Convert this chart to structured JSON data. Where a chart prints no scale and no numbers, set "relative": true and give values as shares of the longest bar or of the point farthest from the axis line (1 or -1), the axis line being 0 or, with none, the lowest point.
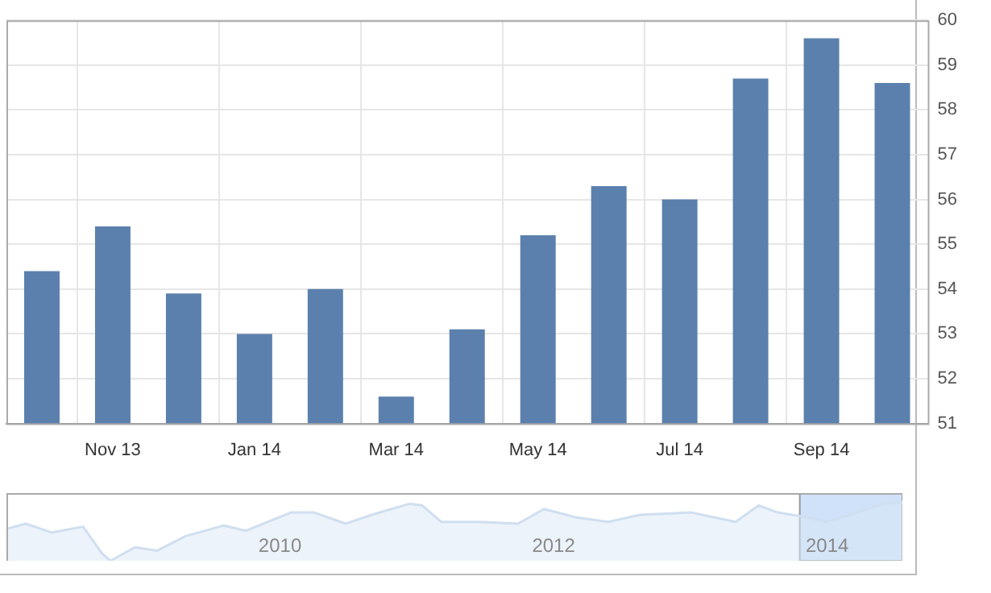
{
  "chart_data": [
    {
      "type": "bar",
      "categories": [
        null,
        "Nov 13",
        null,
        "Jan 14",
        null,
        "Mar 14",
        null,
        "May 14",
        null,
        "Jul 14",
        null,
        "Sep 14",
        null
      ],
      "values": [
        54.4,
        55.4,
        53.9,
        53.0,
        54.0,
        51.6,
        53.1,
        55.2,
        56.3,
        56.0,
        58.7,
        59.6,
        58.6
      ],
      "color": "#5b80ad",
      "ylim": [
        51,
        60
      ],
      "yticks": [
        51,
        52,
        53,
        54,
        55,
        56,
        57,
        58,
        59,
        60
      ],
      "grid": true
    },
    {
      "type": "area",
      "relative": true,
      "color": "#cfdff0",
      "x": [
        2008.0,
        2008.14,
        2008.33,
        2008.56,
        2008.7,
        2008.76,
        2008.94,
        2009.1,
        2009.31,
        2009.59,
        2009.75,
        2010.08,
        2010.25,
        2010.48,
        2010.67,
        2010.95,
        2011.04,
        2011.18,
        2011.46,
        2011.74,
        2011.93,
        2012.16,
        2012.4,
        2012.63,
        2013.01,
        2013.33,
        2013.5,
        2013.64,
        2013.85,
        2013.99,
        2014.22,
        2014.41,
        2014.55
      ],
      "values": [
        0.54,
        0.63,
        0.48,
        0.58,
        0.12,
        0,
        0.23,
        0.17,
        0.42,
        0.6,
        0.51,
        0.82,
        0.82,
        0.63,
        0.78,
        0.97,
        0.94,
        0.66,
        0.66,
        0.63,
        0.88,
        0.74,
        0.66,
        0.78,
        0.82,
        0.66,
        0.94,
        0.82,
        0.74,
        0.66,
        0.82,
        0.97,
        1
      ],
      "xlim": [
        2008,
        2014.55
      ],
      "xticks": [
        2010,
        2012,
        2014
      ],
      "bands": [
        {
          "axis": "x",
          "from": 2013.8,
          "to": 2014.55,
          "color": "#cfe2fa"
        }
      ]
    }
  ]
}
